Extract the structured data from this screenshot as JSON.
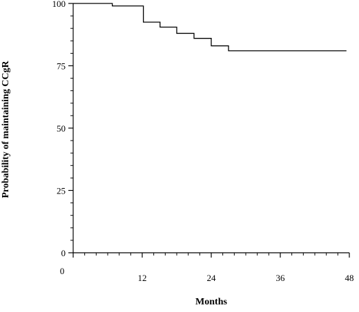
{
  "chart_data": {
    "type": "line",
    "step": true,
    "title": "",
    "xlabel": "Months",
    "ylabel": "Probability of maintaining CCgR",
    "xlim": [
      0,
      48
    ],
    "ylim": [
      0,
      100
    ],
    "x_ticks": [
      0,
      12,
      24,
      36,
      48
    ],
    "y_ticks": [
      0,
      25,
      50,
      75,
      100
    ],
    "x_minor_step": 2,
    "y_minor_step": 5,
    "grid": false,
    "legend": "none",
    "line_color": "#000000",
    "series": [
      {
        "x": [
          0,
          6.8,
          12.2,
          15.1,
          18.0,
          21.0,
          24.0,
          27.0,
          47.5
        ],
        "y": [
          100,
          99,
          92.5,
          90.5,
          88,
          86,
          83,
          81,
          81
        ]
      }
    ]
  }
}
